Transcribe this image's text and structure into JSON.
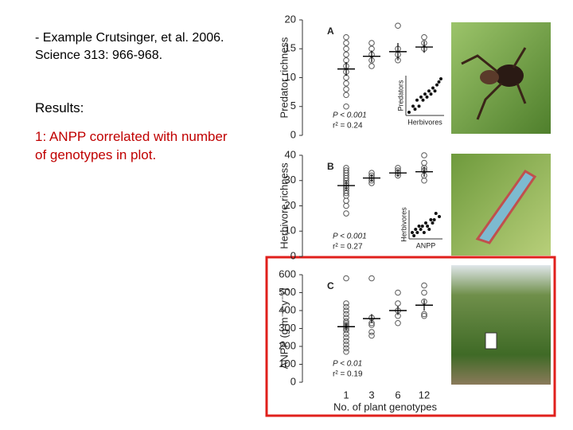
{
  "slide": {
    "citation": [
      "- Example Crutsinger, et al. 2006.",
      "Science 313: 966-968."
    ],
    "heading": "Results:",
    "finding": [
      "1: ANPP correlated with number",
      "of genotypes in plot."
    ]
  },
  "chart_data": [
    {
      "type": "scatter",
      "label": "A",
      "y_label": "Predator richness",
      "ylim": [
        0,
        20
      ],
      "yticks": [
        0,
        5,
        10,
        15,
        20
      ],
      "groups": [
        [
          5,
          7,
          8,
          9,
          10,
          11,
          12,
          13,
          14,
          15,
          16,
          17
        ],
        [
          12,
          13,
          14,
          15,
          16
        ],
        [
          13,
          14,
          15,
          19
        ],
        [
          15,
          16,
          17
        ]
      ],
      "means": [
        11.5,
        13.7,
        14.5,
        15.3
      ],
      "errors": [
        1.2,
        1,
        1.5,
        1
      ],
      "annotations": [
        "P < 0.001",
        "r² = 0.24"
      ],
      "inset": {
        "x_label": "Herbivores",
        "y_label": "Predators",
        "x": [
          1,
          2,
          2.5,
          3,
          3.5,
          4,
          4.5,
          5,
          5.5,
          6,
          6.5,
          7,
          7.5,
          8,
          8.5,
          9
        ],
        "y": [
          3,
          4,
          3.5,
          5,
          4,
          5.5,
          5,
          6,
          5.5,
          6.5,
          6,
          7,
          6.5,
          7.5,
          8,
          8.5
        ]
      }
    },
    {
      "type": "scatter",
      "label": "B",
      "y_label": "Herbivore richness",
      "ylim": [
        0,
        40
      ],
      "yticks": [
        0,
        10,
        20,
        30,
        40
      ],
      "groups": [
        [
          17,
          20,
          22,
          24,
          25,
          26,
          27,
          28,
          29,
          30,
          31,
          32,
          33,
          34,
          35
        ],
        [
          29,
          30,
          31,
          32,
          33
        ],
        [
          32,
          33,
          34,
          35
        ],
        [
          30,
          32,
          34,
          35,
          37,
          40
        ]
      ],
      "means": [
        28,
        31,
        33,
        33.5
      ],
      "errors": [
        2,
        1.5,
        1.5,
        2
      ],
      "annotations": [
        "P < 0.001",
        "r² = 0.27"
      ],
      "inset": {
        "x_label": "ANPP",
        "y_label": "Herbivores",
        "x": [
          1,
          1.5,
          2,
          2.5,
          3,
          3.5,
          4,
          4.5,
          5,
          5.5,
          6,
          6.5,
          7,
          7.5,
          8,
          9
        ],
        "y": [
          4,
          3.5,
          4.5,
          4,
          5,
          4.5,
          5,
          4,
          5.5,
          5,
          4.5,
          6,
          5.5,
          6,
          7,
          6.5
        ]
      }
    },
    {
      "type": "scatter",
      "label": "C",
      "y_label": "ANPP (g m⁻² y⁻¹)",
      "ylim": [
        0,
        600
      ],
      "yticks": [
        0,
        100,
        200,
        300,
        400,
        500,
        600
      ],
      "categories": [
        "1",
        "3",
        "6",
        "12"
      ],
      "x_label": "No. of plant genotypes",
      "groups": [
        [
          170,
          190,
          210,
          230,
          250,
          270,
          290,
          300,
          310,
          320,
          330,
          340,
          360,
          380,
          400,
          420,
          440,
          580
        ],
        [
          260,
          280,
          320,
          330,
          360,
          580
        ],
        [
          330,
          370,
          400,
          440,
          500
        ],
        [
          370,
          380,
          450,
          500,
          540
        ]
      ],
      "means": [
        310,
        355,
        400,
        430
      ],
      "errors": [
        20,
        25,
        25,
        30
      ],
      "annotations": [
        "P < 0.01",
        "r² = 0.19"
      ]
    }
  ]
}
